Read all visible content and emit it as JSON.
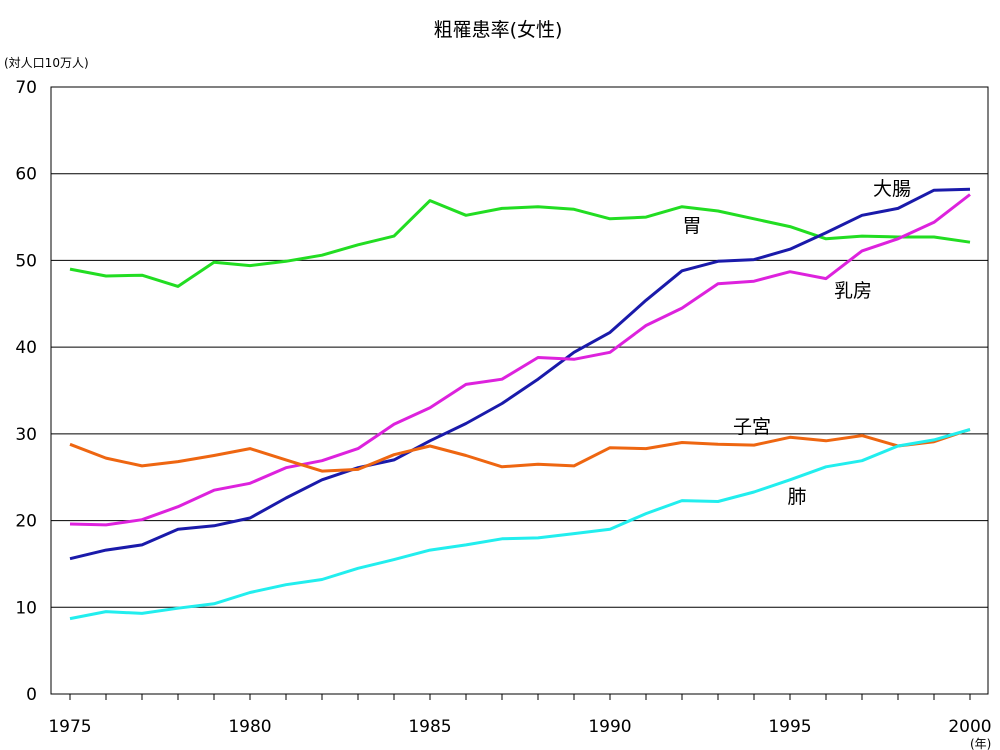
{
  "chart_data": {
    "type": "line",
    "title": "粗罹患率(女性)",
    "y_unit": "(対人口10万人)",
    "x_unit": "(年)",
    "xlim": [
      1975,
      2000
    ],
    "ylim": [
      0,
      70
    ],
    "x_ticks": [
      1975,
      1980,
      1985,
      1990,
      1995,
      2000
    ],
    "y_ticks": [
      0,
      10,
      20,
      30,
      40,
      50,
      60,
      70
    ],
    "grid": "horizontal",
    "x": [
      1975,
      1976,
      1977,
      1978,
      1979,
      1980,
      1981,
      1982,
      1983,
      1984,
      1985,
      1986,
      1987,
      1988,
      1989,
      1990,
      1991,
      1992,
      1993,
      1994,
      1995,
      1996,
      1997,
      1998,
      1999,
      2000
    ],
    "series": [
      {
        "name": "胃",
        "color": "#22dd22",
        "values": [
          49.0,
          48.2,
          48.3,
          47.0,
          49.8,
          49.4,
          49.9,
          50.6,
          51.8,
          52.8,
          56.9,
          55.2,
          56.0,
          56.2,
          55.9,
          54.8,
          55.0,
          56.2,
          55.7,
          54.8,
          53.9,
          52.5,
          52.8,
          52.7,
          52.7,
          52.1
        ]
      },
      {
        "name": "大腸",
        "color": "#1a1aaa",
        "values": [
          15.6,
          16.6,
          17.2,
          19.0,
          19.4,
          20.3,
          22.6,
          24.7,
          26.1,
          27.0,
          29.2,
          31.2,
          33.5,
          36.3,
          39.4,
          41.7,
          45.4,
          48.8,
          49.9,
          50.1,
          51.3,
          53.2,
          55.2,
          56.0,
          58.1,
          58.2
        ]
      },
      {
        "name": "乳房",
        "color": "#dd22dd",
        "values": [
          19.6,
          19.5,
          20.1,
          21.6,
          23.5,
          24.3,
          26.1,
          26.9,
          28.3,
          31.1,
          33.0,
          35.7,
          36.3,
          38.8,
          38.6,
          39.4,
          42.5,
          44.5,
          47.3,
          47.6,
          48.7,
          47.9,
          51.1,
          52.5,
          54.4,
          57.6
        ]
      },
      {
        "name": "子宮",
        "color": "#ee6611",
        "values": [
          28.8,
          27.2,
          26.3,
          26.8,
          27.5,
          28.3,
          27.0,
          25.7,
          25.9,
          27.6,
          28.6,
          27.5,
          26.2,
          26.5,
          26.3,
          28.4,
          28.3,
          29.0,
          28.8,
          28.7,
          29.6,
          29.2,
          29.8,
          28.6,
          29.1,
          30.5
        ]
      },
      {
        "name": "肺",
        "color": "#22eeee",
        "values": [
          8.7,
          9.5,
          9.3,
          9.9,
          10.4,
          11.7,
          12.6,
          13.2,
          14.5,
          15.5,
          16.6,
          17.2,
          17.9,
          18.0,
          18.5,
          19.0,
          20.8,
          22.3,
          22.2,
          23.3,
          24.7,
          26.2,
          26.9,
          28.6,
          29.3,
          30.5
        ]
      }
    ]
  }
}
